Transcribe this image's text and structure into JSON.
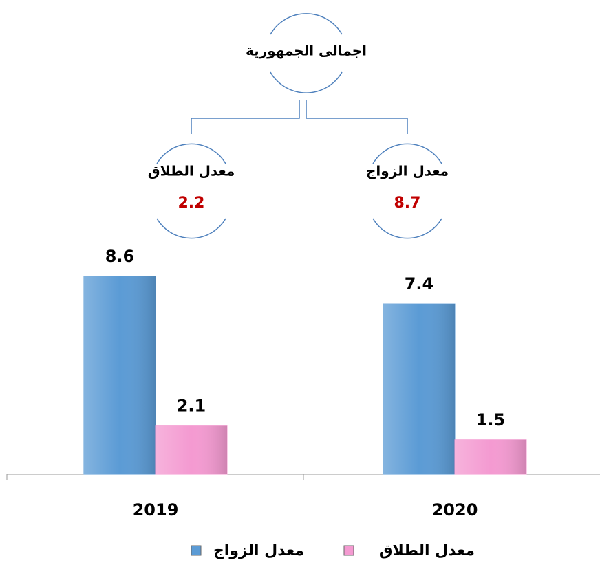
{
  "summary": {
    "title": "اجمالى الجمهورية",
    "items": [
      {
        "label": "معدل الطلاق",
        "value": 2.2
      },
      {
        "label": "معدل الزواج",
        "value": 8.7
      }
    ]
  },
  "chart_data": {
    "type": "bar",
    "categories": [
      "2019",
      "2020"
    ],
    "series": [
      {
        "name": "معدل الزواج",
        "color": "#5b9bd5",
        "values": [
          8.6,
          7.4
        ]
      },
      {
        "name": "معدل الطلاق",
        "color": "#f49ad1",
        "values": [
          2.1,
          1.5
        ]
      }
    ],
    "ylim": [
      0,
      10
    ]
  }
}
